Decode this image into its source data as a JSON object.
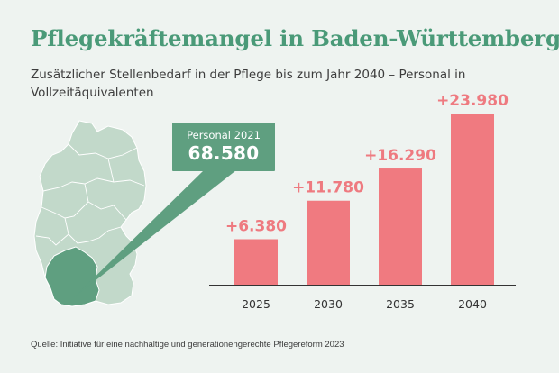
{
  "header": {
    "title": "Pflegekräftemangel in Baden-Württemberg",
    "subtitle": "Zusätzlicher Stellenbedarf in der Pflege bis zum Jahr 2040 – Personal in Vollzeitäquivalenten"
  },
  "callout": {
    "label": "Personal 2021",
    "value": "68.580"
  },
  "map": {
    "name": "Germany map with Baden-Württemberg highlighted",
    "base_color": "#c2d9ca",
    "highlight_color": "#5f9f80"
  },
  "chart_data": {
    "type": "bar",
    "categories": [
      "2025",
      "2030",
      "2035",
      "2040"
    ],
    "values": [
      6380,
      11780,
      16290,
      23980
    ],
    "value_labels": [
      "+6.380",
      "+11.780",
      "+16.290",
      "+23.980"
    ],
    "bar_color": "#f07a80",
    "label_color": "#ee7a80",
    "ylim": [
      0,
      24000
    ],
    "grid": false,
    "title": "",
    "xlabel": "",
    "ylabel": ""
  },
  "footer": {
    "source": "Quelle: Initiative für eine nachhaltige und generationengerechte Pflegereform 2023"
  }
}
